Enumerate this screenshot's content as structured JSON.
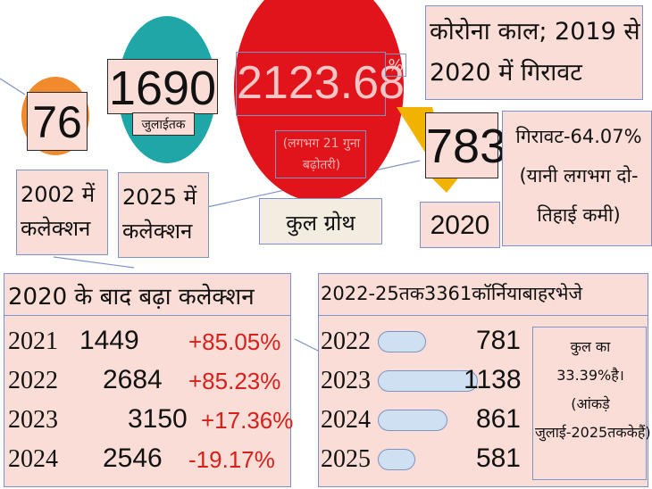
{
  "left_circle": {
    "value": "76",
    "caption": "2002 में कलेक्शन"
  },
  "mid_circle": {
    "value": "1690",
    "note": "जुलाईतक",
    "caption": "2025 में कलेक्शन"
  },
  "red_circle": {
    "value": "2123.68",
    "unit": "%",
    "note": "(लगभग 21 गुना बढ़ोतरी)",
    "caption": "कुल ग्रोथ"
  },
  "corona": {
    "title": "कोरोना काल; 2019 से 2020 में गिरावट",
    "value": "783",
    "year": "2020",
    "drop": "गिरावट-64.07% (यानी लगभग दो-तिहाई कमी)"
  },
  "after_2020": {
    "title": "2020 के बाद बढ़ा कलेक्शन",
    "rows": [
      {
        "year": "2021",
        "value": "1449",
        "change": "+85.05%"
      },
      {
        "year": "2022",
        "value": "2684",
        "change": "+85.23%"
      },
      {
        "year": "2023",
        "value": "3150",
        "change": "+17.36%"
      },
      {
        "year": "2024",
        "value": "2546",
        "change": "-19.17%"
      }
    ]
  },
  "sent_abroad": {
    "title": "2022-25तक3361कॉर्नियाबाहरभेजे",
    "rows": [
      {
        "year": "2022",
        "value": "781"
      },
      {
        "year": "2023",
        "value": "1138"
      },
      {
        "year": "2024",
        "value": "861"
      },
      {
        "year": "2025",
        "value": "581"
      }
    ],
    "note": "कुल का 33.39%है। (आंकड़े जुलाई-2025तककेहैं)"
  },
  "colors": {
    "orange": "#f08a2c",
    "teal": "#1fa7a8",
    "red": "#e0141a",
    "box": "#f9ddd6",
    "border": "#7d93c4",
    "negative": "#d6201c"
  }
}
